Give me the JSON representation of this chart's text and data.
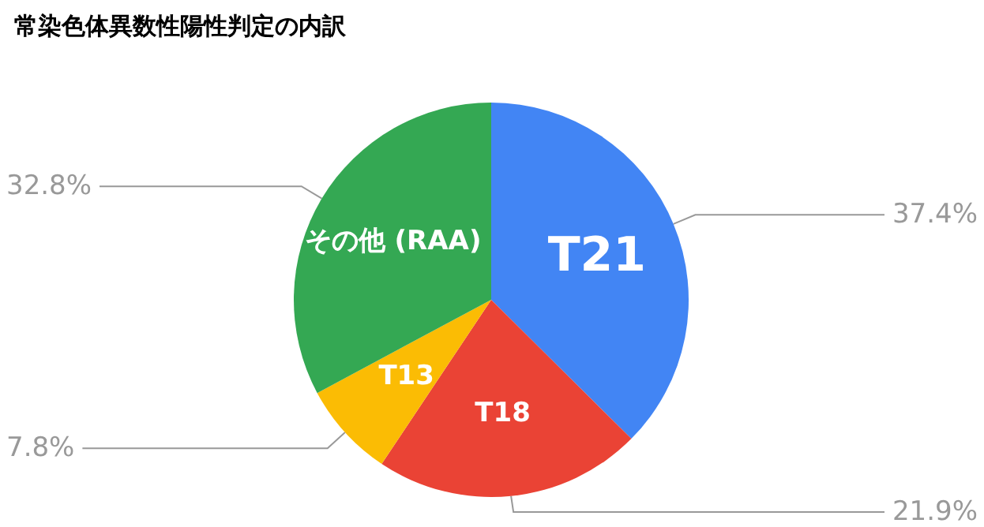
{
  "chart_data": {
    "type": "pie",
    "title": "常染色体異数性陽性判定の内訳",
    "categories": [
      "T21",
      "T18",
      "T13",
      "その他 (RAA)"
    ],
    "values": [
      37.4,
      21.9,
      7.8,
      32.8
    ],
    "colors": [
      "#4285f4",
      "#ea4335",
      "#fbbc04",
      "#34a853"
    ],
    "value_labels": [
      "37.4%",
      "21.9%",
      "7.8%",
      "32.8%"
    ],
    "legend": false
  }
}
